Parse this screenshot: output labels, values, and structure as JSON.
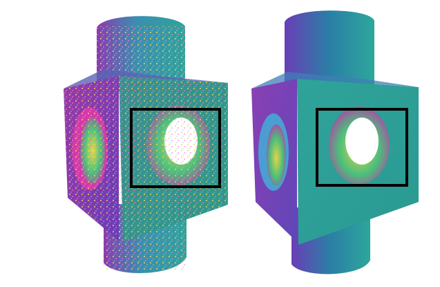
{
  "figure": {
    "panels": [
      {
        "name": "noisy-point-cloud",
        "has_zoom_box": true
      },
      {
        "name": "denoised-point-cloud",
        "has_zoom_box": true
      }
    ],
    "colors": {
      "background": "#ffffff",
      "zoom_box": "#000000",
      "teal": "#2fa39a",
      "teal_dark": "#1f6f86",
      "purple": "#7a3fb4",
      "magenta": "#c03aa8",
      "yellow": "#e8d84a",
      "green": "#49c27a"
    }
  }
}
